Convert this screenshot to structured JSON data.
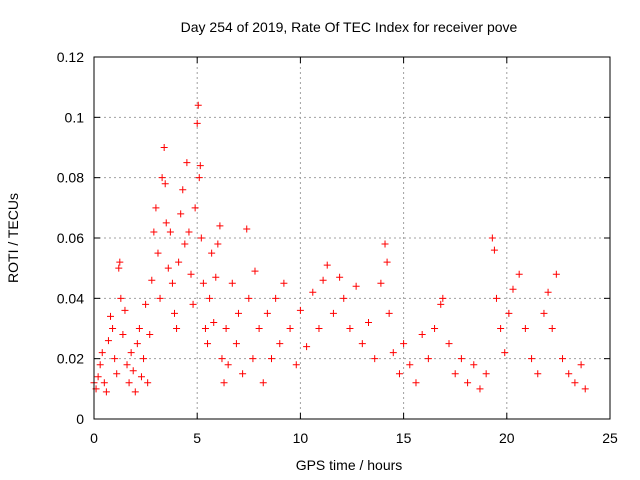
{
  "chart_data": {
    "type": "scatter",
    "title": "Day 254 of 2019, Rate Of TEC Index for receiver pove",
    "xlabel": "GPS time / hours",
    "ylabel": "ROTI / TECUs",
    "xlim": [
      0,
      25
    ],
    "ylim": [
      0,
      0.12
    ],
    "xticks": [
      0,
      5,
      10,
      15,
      20,
      25
    ],
    "xtick_labels": [
      "0",
      "5",
      "10",
      "15",
      "20",
      "25"
    ],
    "yticks": [
      0,
      0.02,
      0.04,
      0.06,
      0.08,
      0.1,
      0.12
    ],
    "ytick_labels": [
      "0",
      "0.02",
      "0.04",
      "0.06",
      "0.08",
      "0.1",
      "0.12"
    ],
    "grid": true,
    "marker": "plus",
    "color": "#ff0000",
    "series": [
      {
        "name": "ROTI",
        "points": [
          [
            0.0,
            0.012
          ],
          [
            0.1,
            0.01
          ],
          [
            0.2,
            0.014
          ],
          [
            0.3,
            0.018
          ],
          [
            0.4,
            0.022
          ],
          [
            0.5,
            0.012
          ],
          [
            0.6,
            0.009
          ],
          [
            0.7,
            0.026
          ],
          [
            0.8,
            0.034
          ],
          [
            0.9,
            0.03
          ],
          [
            1.0,
            0.02
          ],
          [
            1.1,
            0.015
          ],
          [
            1.2,
            0.05
          ],
          [
            1.25,
            0.052
          ],
          [
            1.3,
            0.04
          ],
          [
            1.4,
            0.028
          ],
          [
            1.5,
            0.036
          ],
          [
            1.6,
            0.018
          ],
          [
            1.7,
            0.012
          ],
          [
            1.8,
            0.022
          ],
          [
            1.9,
            0.016
          ],
          [
            2.0,
            0.009
          ],
          [
            2.1,
            0.025
          ],
          [
            2.2,
            0.03
          ],
          [
            2.3,
            0.014
          ],
          [
            2.4,
            0.02
          ],
          [
            2.5,
            0.038
          ],
          [
            2.6,
            0.012
          ],
          [
            2.7,
            0.028
          ],
          [
            2.8,
            0.046
          ],
          [
            2.9,
            0.062
          ],
          [
            3.0,
            0.07
          ],
          [
            3.1,
            0.055
          ],
          [
            3.2,
            0.04
          ],
          [
            3.3,
            0.08
          ],
          [
            3.4,
            0.09
          ],
          [
            3.45,
            0.078
          ],
          [
            3.5,
            0.065
          ],
          [
            3.6,
            0.05
          ],
          [
            3.7,
            0.062
          ],
          [
            3.8,
            0.045
          ],
          [
            3.9,
            0.035
          ],
          [
            4.0,
            0.03
          ],
          [
            4.1,
            0.052
          ],
          [
            4.2,
            0.068
          ],
          [
            4.3,
            0.076
          ],
          [
            4.4,
            0.058
          ],
          [
            4.5,
            0.085
          ],
          [
            4.6,
            0.062
          ],
          [
            4.7,
            0.048
          ],
          [
            4.8,
            0.038
          ],
          [
            4.9,
            0.07
          ],
          [
            5.0,
            0.098
          ],
          [
            5.05,
            0.104
          ],
          [
            5.1,
            0.08
          ],
          [
            5.15,
            0.084
          ],
          [
            5.2,
            0.06
          ],
          [
            5.3,
            0.045
          ],
          [
            5.4,
            0.03
          ],
          [
            5.5,
            0.025
          ],
          [
            5.6,
            0.04
          ],
          [
            5.7,
            0.055
          ],
          [
            5.8,
            0.032
          ],
          [
            5.9,
            0.047
          ],
          [
            6.0,
            0.058
          ],
          [
            6.1,
            0.064
          ],
          [
            6.2,
            0.02
          ],
          [
            6.3,
            0.012
          ],
          [
            6.4,
            0.03
          ],
          [
            6.5,
            0.018
          ],
          [
            6.7,
            0.045
          ],
          [
            6.9,
            0.025
          ],
          [
            7.0,
            0.035
          ],
          [
            7.2,
            0.015
          ],
          [
            7.4,
            0.063
          ],
          [
            7.5,
            0.04
          ],
          [
            7.7,
            0.02
          ],
          [
            7.8,
            0.049
          ],
          [
            8.0,
            0.03
          ],
          [
            8.2,
            0.012
          ],
          [
            8.4,
            0.035
          ],
          [
            8.6,
            0.02
          ],
          [
            8.8,
            0.04
          ],
          [
            9.0,
            0.025
          ],
          [
            9.2,
            0.045
          ],
          [
            9.5,
            0.03
          ],
          [
            9.8,
            0.018
          ],
          [
            10.0,
            0.036
          ],
          [
            10.3,
            0.024
          ],
          [
            10.6,
            0.042
          ],
          [
            10.9,
            0.03
          ],
          [
            11.1,
            0.046
          ],
          [
            11.3,
            0.051
          ],
          [
            11.6,
            0.035
          ],
          [
            11.9,
            0.047
          ],
          [
            12.1,
            0.04
          ],
          [
            12.4,
            0.03
          ],
          [
            12.7,
            0.044
          ],
          [
            13.0,
            0.025
          ],
          [
            13.3,
            0.032
          ],
          [
            13.6,
            0.02
          ],
          [
            13.9,
            0.045
          ],
          [
            14.1,
            0.058
          ],
          [
            14.2,
            0.052
          ],
          [
            14.3,
            0.035
          ],
          [
            14.5,
            0.022
          ],
          [
            14.8,
            0.015
          ],
          [
            15.0,
            0.025
          ],
          [
            15.3,
            0.018
          ],
          [
            15.6,
            0.012
          ],
          [
            15.9,
            0.028
          ],
          [
            16.2,
            0.02
          ],
          [
            16.5,
            0.03
          ],
          [
            16.8,
            0.038
          ],
          [
            16.9,
            0.04
          ],
          [
            17.2,
            0.025
          ],
          [
            17.5,
            0.015
          ],
          [
            17.8,
            0.02
          ],
          [
            18.1,
            0.012
          ],
          [
            18.4,
            0.018
          ],
          [
            18.7,
            0.01
          ],
          [
            19.0,
            0.015
          ],
          [
            19.3,
            0.06
          ],
          [
            19.4,
            0.056
          ],
          [
            19.5,
            0.04
          ],
          [
            19.7,
            0.03
          ],
          [
            19.9,
            0.022
          ],
          [
            20.1,
            0.035
          ],
          [
            20.3,
            0.043
          ],
          [
            20.6,
            0.048
          ],
          [
            20.9,
            0.03
          ],
          [
            21.2,
            0.02
          ],
          [
            21.5,
            0.015
          ],
          [
            21.8,
            0.035
          ],
          [
            22.0,
            0.042
          ],
          [
            22.2,
            0.03
          ],
          [
            22.4,
            0.048
          ],
          [
            22.7,
            0.02
          ],
          [
            23.0,
            0.015
          ],
          [
            23.3,
            0.012
          ],
          [
            23.6,
            0.018
          ],
          [
            23.8,
            0.01
          ]
        ]
      }
    ]
  }
}
